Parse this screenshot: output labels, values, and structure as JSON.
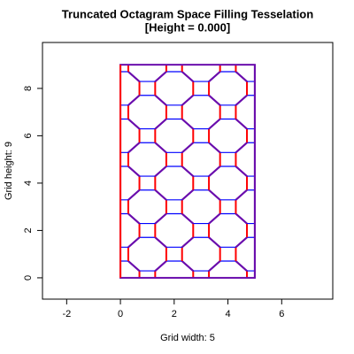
{
  "chart_data": {
    "type": "tessellation",
    "title": "Truncated Octagram Space Filling Tesselation",
    "subtitle": "[Height = 0.000]",
    "x_label": "Grid width: 5",
    "y_label": "Grid height: 9",
    "cols": 5,
    "rows": 9,
    "xlim": [
      -2.9,
      7.9
    ],
    "ylim": [
      -0.9,
      9.94
    ],
    "xticks": [
      -2,
      0,
      2,
      4,
      6
    ],
    "yticks": [
      0,
      2,
      4,
      6,
      8
    ]
  }
}
